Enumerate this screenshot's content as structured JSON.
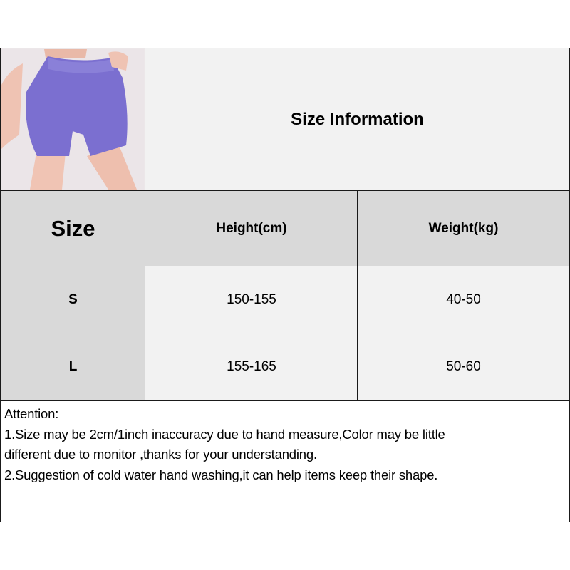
{
  "title": "Size Information",
  "product_image": {
    "subject": "purple high-waist shorts",
    "color": "#7b6fd0"
  },
  "table": {
    "headers": [
      "Size",
      "Height(cm)",
      "Weight(kg)"
    ],
    "rows": [
      [
        "S",
        "150-155",
        "40-50"
      ],
      [
        "L",
        "155-165",
        "50-60"
      ]
    ]
  },
  "note": {
    "heading": "Attention:",
    "lines": [
      "1.Size may be 2cm/1inch inaccuracy due to hand measure,Color may be little",
      "different due to monitor ,thanks for your understanding.",
      "2.Suggestion of cold water hand washing,it can help items keep their shape."
    ]
  }
}
